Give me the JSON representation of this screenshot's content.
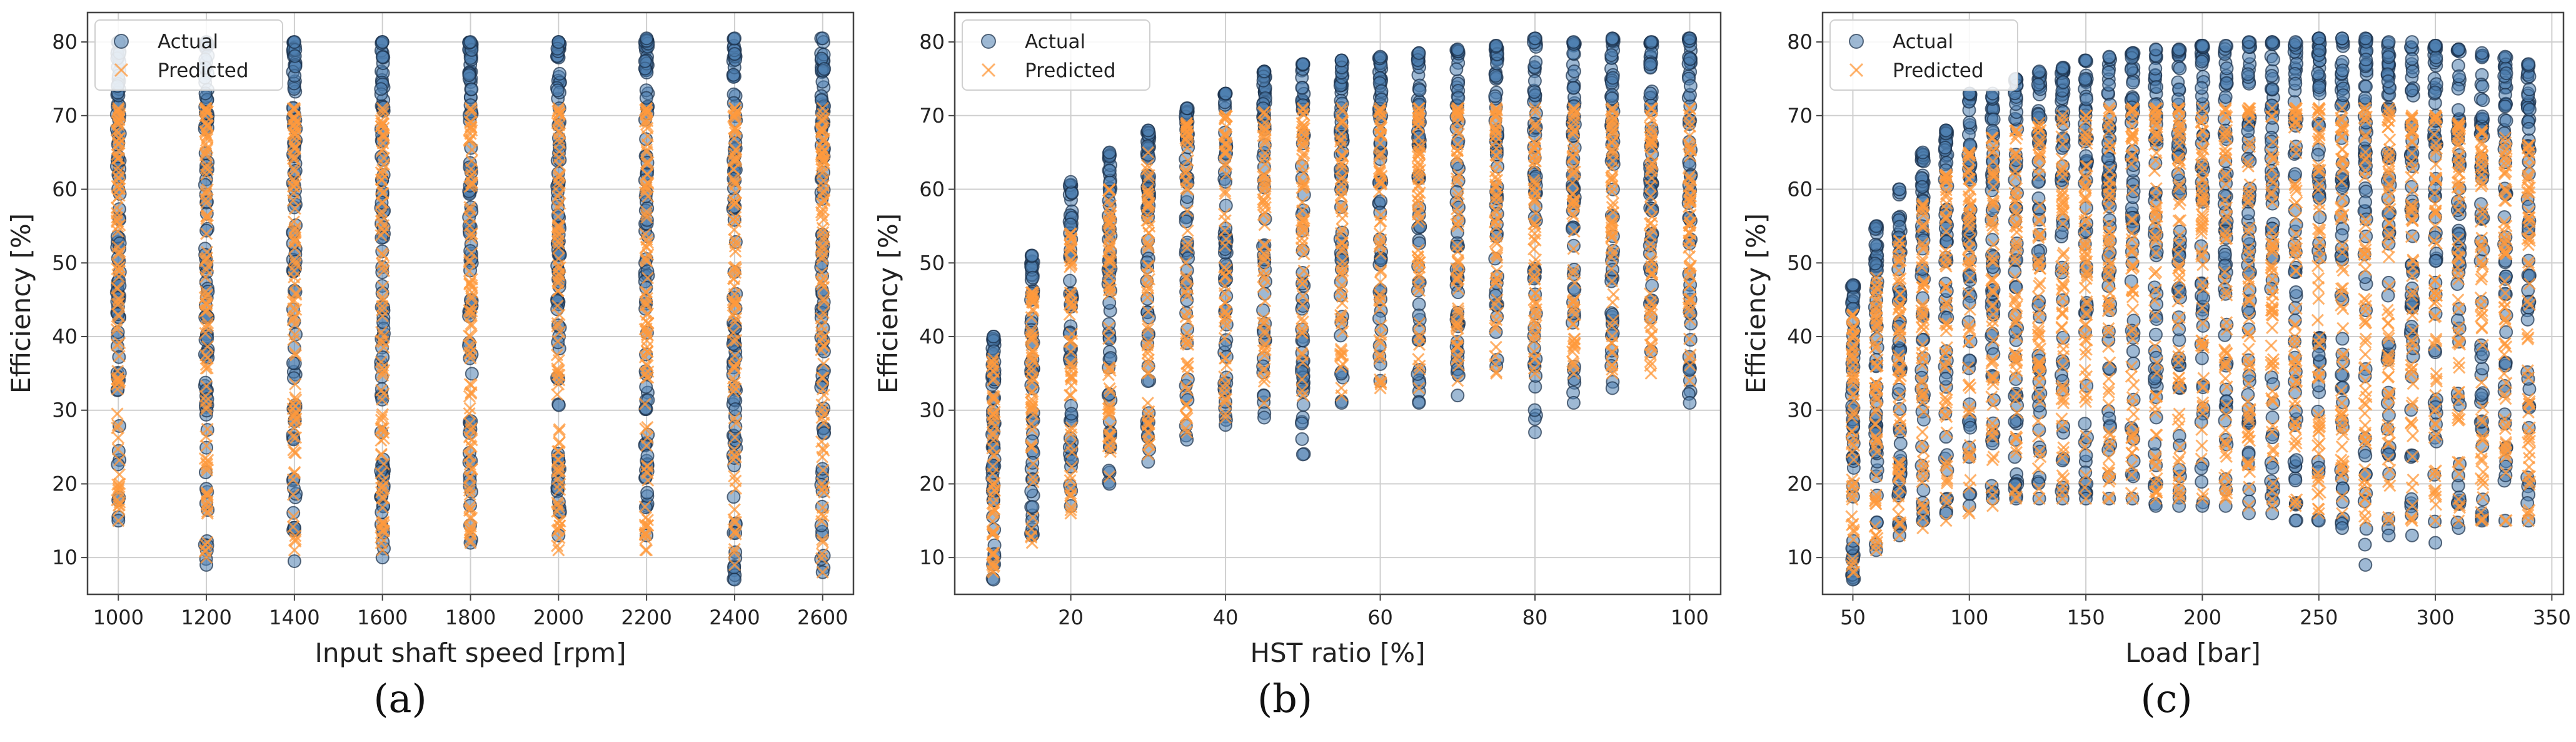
{
  "colors": {
    "actual_fill": "#4f7fb0",
    "actual_edge": "#1a2f48",
    "predicted": "#ff9a3c",
    "grid": "#cfcfcf",
    "frame": "#444444"
  },
  "chart_data": [
    {
      "type": "scatter",
      "panel_label": "(a)",
      "xlabel": "Input shaft speed [rpm]",
      "ylabel": "Efficiency [%]",
      "xlim": [
        930,
        2670
      ],
      "ylim": [
        5,
        84
      ],
      "xticks": [
        1000,
        1200,
        1400,
        1600,
        1800,
        2000,
        2200,
        2400,
        2600
      ],
      "yticks": [
        10,
        20,
        30,
        40,
        50,
        60,
        70,
        80
      ],
      "grid": true,
      "legend": {
        "location": "top-left",
        "entries": [
          "Actual",
          "Predicted"
        ]
      },
      "series": [
        {
          "name": "Actual",
          "marker": "circle",
          "groups": [
            {
              "x": 1000,
              "y_min": 15,
              "y_max": 80
            },
            {
              "x": 1200,
              "y_min": 9,
              "y_max": 80
            },
            {
              "x": 1400,
              "y_min": 9.5,
              "y_max": 80
            },
            {
              "x": 1600,
              "y_min": 10,
              "y_max": 80
            },
            {
              "x": 1800,
              "y_min": 12,
              "y_max": 80
            },
            {
              "x": 2000,
              "y_min": 13,
              "y_max": 80
            },
            {
              "x": 2200,
              "y_min": 13,
              "y_max": 80.5
            },
            {
              "x": 2400,
              "y_min": 7,
              "y_max": 80.5
            },
            {
              "x": 2600,
              "y_min": 8,
              "y_max": 80.5
            }
          ]
        },
        {
          "name": "Predicted",
          "marker": "x",
          "groups": [
            {
              "x": 1000,
              "y_min": 15,
              "y_max": 71
            },
            {
              "x": 1200,
              "y_min": 10,
              "y_max": 71
            },
            {
              "x": 1400,
              "y_min": 11,
              "y_max": 71
            },
            {
              "x": 1600,
              "y_min": 11,
              "y_max": 71
            },
            {
              "x": 1800,
              "y_min": 12,
              "y_max": 71
            },
            {
              "x": 2000,
              "y_min": 11,
              "y_max": 71
            },
            {
              "x": 2200,
              "y_min": 11,
              "y_max": 71
            },
            {
              "x": 2400,
              "y_min": 9,
              "y_max": 71
            },
            {
              "x": 2600,
              "y_min": 8,
              "y_max": 71
            }
          ]
        }
      ]
    },
    {
      "type": "scatter",
      "panel_label": "(b)",
      "xlabel": "HST ratio [%]",
      "ylabel": "Efficiency [%]",
      "xlim": [
        5,
        104
      ],
      "ylim": [
        5,
        84
      ],
      "xticks": [
        20,
        40,
        60,
        80,
        100
      ],
      "yticks": [
        10,
        20,
        30,
        40,
        50,
        60,
        70,
        80
      ],
      "grid": true,
      "legend": {
        "location": "top-left",
        "entries": [
          "Actual",
          "Predicted"
        ]
      },
      "series": [
        {
          "name": "Actual",
          "marker": "circle",
          "groups": [
            {
              "x": 10,
              "y_min": 7,
              "y_max": 40
            },
            {
              "x": 15,
              "y_min": 13,
              "y_max": 51
            },
            {
              "x": 20,
              "y_min": 17,
              "y_max": 61
            },
            {
              "x": 25,
              "y_min": 20,
              "y_max": 65
            },
            {
              "x": 30,
              "y_min": 23,
              "y_max": 68
            },
            {
              "x": 35,
              "y_min": 26,
              "y_max": 71
            },
            {
              "x": 40,
              "y_min": 28,
              "y_max": 73
            },
            {
              "x": 45,
              "y_min": 29,
              "y_max": 76
            },
            {
              "x": 50,
              "y_min": 24,
              "y_max": 77
            },
            {
              "x": 55,
              "y_min": 31,
              "y_max": 77.5
            },
            {
              "x": 60,
              "y_min": 34,
              "y_max": 78
            },
            {
              "x": 65,
              "y_min": 31,
              "y_max": 78.5
            },
            {
              "x": 70,
              "y_min": 32,
              "y_max": 79
            },
            {
              "x": 75,
              "y_min": 36,
              "y_max": 79.5
            },
            {
              "x": 80,
              "y_min": 27,
              "y_max": 80.5
            },
            {
              "x": 85,
              "y_min": 31,
              "y_max": 80
            },
            {
              "x": 90,
              "y_min": 33,
              "y_max": 80.5
            },
            {
              "x": 95,
              "y_min": 38,
              "y_max": 80
            },
            {
              "x": 100,
              "y_min": 31,
              "y_max": 80.5
            }
          ]
        },
        {
          "name": "Predicted",
          "marker": "x",
          "groups": [
            {
              "x": 10,
              "y_min": 8,
              "y_max": 37
            },
            {
              "x": 15,
              "y_min": 12,
              "y_max": 46
            },
            {
              "x": 20,
              "y_min": 16,
              "y_max": 54
            },
            {
              "x": 25,
              "y_min": 21,
              "y_max": 60
            },
            {
              "x": 30,
              "y_min": 24,
              "y_max": 65
            },
            {
              "x": 35,
              "y_min": 27,
              "y_max": 69
            },
            {
              "x": 40,
              "y_min": 29,
              "y_max": 70
            },
            {
              "x": 45,
              "y_min": 31,
              "y_max": 70.5
            },
            {
              "x": 50,
              "y_min": 32,
              "y_max": 71
            },
            {
              "x": 55,
              "y_min": 32,
              "y_max": 71
            },
            {
              "x": 60,
              "y_min": 33,
              "y_max": 71
            },
            {
              "x": 65,
              "y_min": 33,
              "y_max": 71
            },
            {
              "x": 70,
              "y_min": 34,
              "y_max": 71
            },
            {
              "x": 75,
              "y_min": 35,
              "y_max": 71
            },
            {
              "x": 80,
              "y_min": 35,
              "y_max": 71
            },
            {
              "x": 85,
              "y_min": 35,
              "y_max": 71
            },
            {
              "x": 90,
              "y_min": 35,
              "y_max": 71
            },
            {
              "x": 95,
              "y_min": 35,
              "y_max": 71
            },
            {
              "x": 100,
              "y_min": 34,
              "y_max": 71
            }
          ]
        }
      ]
    },
    {
      "type": "scatter",
      "panel_label": "(c)",
      "xlabel": "Load [bar]",
      "ylabel": "Efficiency [%]",
      "xlim": [
        37,
        355
      ],
      "ylim": [
        5,
        84
      ],
      "xticks": [
        50,
        100,
        150,
        200,
        250,
        300,
        350
      ],
      "yticks": [
        10,
        20,
        30,
        40,
        50,
        60,
        70,
        80
      ],
      "grid": true,
      "legend": {
        "location": "top-left",
        "entries": [
          "Actual",
          "Predicted"
        ]
      },
      "series": [
        {
          "name": "Actual",
          "marker": "circle",
          "groups": [
            {
              "x": 50,
              "y_min": 7,
              "y_max": 47
            },
            {
              "x": 60,
              "y_min": 11,
              "y_max": 55
            },
            {
              "x": 70,
              "y_min": 13,
              "y_max": 60
            },
            {
              "x": 80,
              "y_min": 15,
              "y_max": 65
            },
            {
              "x": 90,
              "y_min": 16,
              "y_max": 68
            },
            {
              "x": 100,
              "y_min": 17,
              "y_max": 73
            },
            {
              "x": 110,
              "y_min": 18,
              "y_max": 73
            },
            {
              "x": 120,
              "y_min": 18,
              "y_max": 75
            },
            {
              "x": 130,
              "y_min": 18,
              "y_max": 76
            },
            {
              "x": 140,
              "y_min": 18,
              "y_max": 76.5
            },
            {
              "x": 150,
              "y_min": 18,
              "y_max": 77.5
            },
            {
              "x": 160,
              "y_min": 18,
              "y_max": 78
            },
            {
              "x": 170,
              "y_min": 18,
              "y_max": 78.5
            },
            {
              "x": 180,
              "y_min": 17,
              "y_max": 79
            },
            {
              "x": 190,
              "y_min": 17,
              "y_max": 79
            },
            {
              "x": 200,
              "y_min": 17,
              "y_max": 79.5
            },
            {
              "x": 210,
              "y_min": 17,
              "y_max": 79.5
            },
            {
              "x": 220,
              "y_min": 16,
              "y_max": 80
            },
            {
              "x": 230,
              "y_min": 16,
              "y_max": 80
            },
            {
              "x": 240,
              "y_min": 15,
              "y_max": 80
            },
            {
              "x": 250,
              "y_min": 15,
              "y_max": 80.5
            },
            {
              "x": 260,
              "y_min": 14,
              "y_max": 80.5
            },
            {
              "x": 270,
              "y_min": 9,
              "y_max": 80.5
            },
            {
              "x": 280,
              "y_min": 13,
              "y_max": 80
            },
            {
              "x": 290,
              "y_min": 13,
              "y_max": 80
            },
            {
              "x": 300,
              "y_min": 12,
              "y_max": 79.5
            },
            {
              "x": 310,
              "y_min": 14,
              "y_max": 79
            },
            {
              "x": 320,
              "y_min": 15,
              "y_max": 78.5
            },
            {
              "x": 330,
              "y_min": 15,
              "y_max": 78
            },
            {
              "x": 340,
              "y_min": 15,
              "y_max": 77
            }
          ]
        },
        {
          "name": "Predicted",
          "marker": "x",
          "groups": [
            {
              "x": 50,
              "y_min": 8,
              "y_max": 43
            },
            {
              "x": 60,
              "y_min": 11,
              "y_max": 48
            },
            {
              "x": 70,
              "y_min": 13,
              "y_max": 53
            },
            {
              "x": 80,
              "y_min": 14,
              "y_max": 58
            },
            {
              "x": 90,
              "y_min": 15,
              "y_max": 62
            },
            {
              "x": 100,
              "y_min": 16,
              "y_max": 65
            },
            {
              "x": 110,
              "y_min": 17,
              "y_max": 67
            },
            {
              "x": 120,
              "y_min": 18,
              "y_max": 68
            },
            {
              "x": 130,
              "y_min": 18,
              "y_max": 69
            },
            {
              "x": 140,
              "y_min": 18,
              "y_max": 70
            },
            {
              "x": 150,
              "y_min": 18,
              "y_max": 70
            },
            {
              "x": 160,
              "y_min": 18,
              "y_max": 71
            },
            {
              "x": 170,
              "y_min": 18,
              "y_max": 71
            },
            {
              "x": 180,
              "y_min": 18,
              "y_max": 71
            },
            {
              "x": 190,
              "y_min": 18,
              "y_max": 71
            },
            {
              "x": 200,
              "y_min": 18,
              "y_max": 71
            },
            {
              "x": 210,
              "y_min": 18,
              "y_max": 71
            },
            {
              "x": 220,
              "y_min": 17,
              "y_max": 71
            },
            {
              "x": 230,
              "y_min": 17,
              "y_max": 71
            },
            {
              "x": 240,
              "y_min": 17,
              "y_max": 71
            },
            {
              "x": 250,
              "y_min": 16,
              "y_max": 71
            },
            {
              "x": 260,
              "y_min": 16,
              "y_max": 71
            },
            {
              "x": 270,
              "y_min": 15,
              "y_max": 71
            },
            {
              "x": 280,
              "y_min": 15,
              "y_max": 71
            },
            {
              "x": 290,
              "y_min": 15,
              "y_max": 70
            },
            {
              "x": 300,
              "y_min": 15,
              "y_max": 70
            },
            {
              "x": 310,
              "y_min": 15,
              "y_max": 69
            },
            {
              "x": 320,
              "y_min": 15,
              "y_max": 68
            },
            {
              "x": 330,
              "y_min": 15,
              "y_max": 67
            },
            {
              "x": 340,
              "y_min": 15,
              "y_max": 66
            }
          ]
        }
      ]
    }
  ]
}
